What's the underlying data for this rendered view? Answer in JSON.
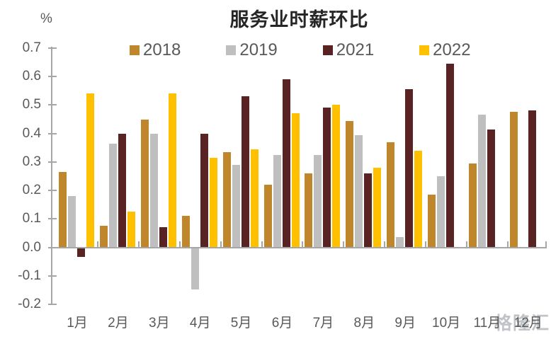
{
  "chart_data": {
    "type": "bar",
    "title": "服务业时薪环比",
    "ylabel": "%",
    "xlabel": "",
    "grid": false,
    "legend_position": "top",
    "ylim": [
      -0.2,
      0.7
    ],
    "ytick_step": 0.1,
    "ytick_labels": [
      "0.7",
      "0.6",
      "0.5",
      "0.4",
      "0.3",
      "0.2",
      "0.1",
      "0.0",
      "-0.1",
      "-0.2"
    ],
    "categories": [
      "1月",
      "2月",
      "3月",
      "4月",
      "5月",
      "6月",
      "7月",
      "8月",
      "9月",
      "10月",
      "11月",
      "12月"
    ],
    "series": [
      {
        "name": "2018",
        "color": "#C0862C",
        "values": [
          0.265,
          0.075,
          0.45,
          0.11,
          0.335,
          0.22,
          0.26,
          0.445,
          0.37,
          0.185,
          0.295,
          0.475
        ]
      },
      {
        "name": "2019",
        "color": "#BFBFBF",
        "values": [
          0.18,
          0.365,
          0.4,
          -0.145,
          0.29,
          0.325,
          0.325,
          0.395,
          0.035,
          0.25,
          0.465,
          null
        ]
      },
      {
        "name": "2021",
        "color": "#5A2323",
        "values": [
          -0.03,
          0.4,
          0.07,
          0.4,
          0.53,
          0.59,
          0.49,
          0.26,
          0.555,
          0.645,
          0.415,
          0.48
        ]
      },
      {
        "name": "2022",
        "color": "#FFC000",
        "values": [
          0.54,
          0.125,
          0.54,
          0.315,
          0.345,
          0.47,
          0.5,
          0.28,
          0.34,
          null,
          null,
          null
        ]
      }
    ],
    "axis_color": "#A6A6A6",
    "label_color": "#595959",
    "title_color": "#262626"
  },
  "watermark": {
    "text": "格隆汇"
  }
}
